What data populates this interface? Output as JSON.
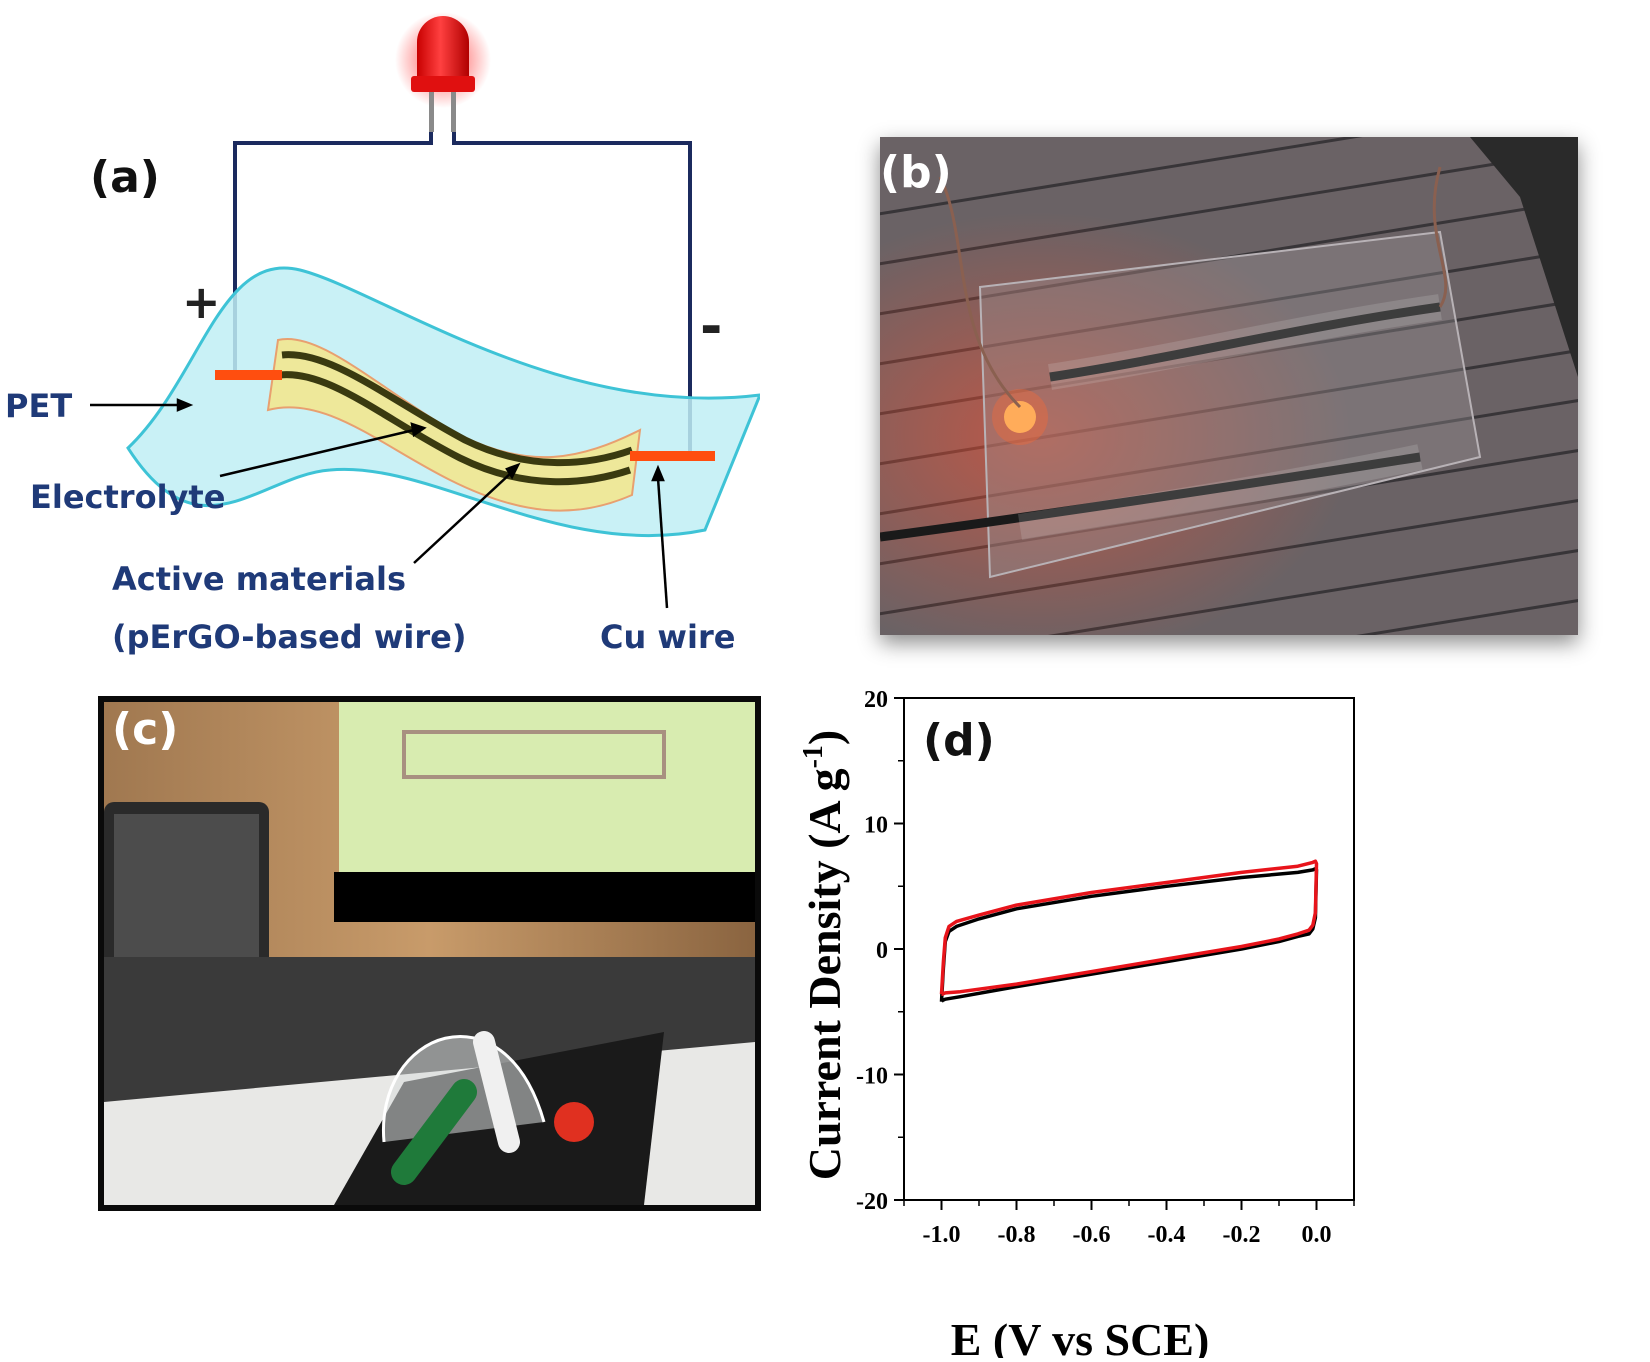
{
  "panels": {
    "a": {
      "label": "(a)",
      "plus": "+",
      "minus": "-",
      "pet": "PET",
      "electrolyte": "Electrolyte",
      "active_line1": "Active materials",
      "active_line2": "(pErGO-based wire)",
      "cu_wire": "Cu wire"
    },
    "b": {
      "label": "(b)"
    },
    "c": {
      "label": "(c)"
    },
    "d": {
      "label": "(d)"
    }
  },
  "colors": {
    "wire": "#1b2a5e",
    "label_blue": "#1f3a78",
    "pet_fill": "#bfeef5",
    "pet_edge": "#3ec3d6",
    "cu": "#ff4e0f",
    "electrolyte": "#f4e68a",
    "led": "#ff1a1a",
    "cv_black": "#000000",
    "cv_red": "#e8141b"
  },
  "chart_data": {
    "type": "line",
    "title": "",
    "xlabel": "E (V vs SCE)",
    "ylabel_main": "Current Density (A g",
    "ylabel_sup": "-1",
    "ylabel_close": ")",
    "xlim": [
      -1.1,
      0.1
    ],
    "ylim": [
      -20,
      20
    ],
    "xticks": [
      -1.0,
      -0.8,
      -0.6,
      -0.4,
      -0.2,
      0.0
    ],
    "xtick_labels": [
      "-1.0",
      "-0.8",
      "-0.6",
      "-0.4",
      "-0.2",
      "0.0"
    ],
    "yticks": [
      -20,
      -10,
      0,
      10,
      20
    ],
    "ytick_labels": [
      "-20",
      "-10",
      "0",
      "10",
      "20"
    ],
    "series": [
      {
        "name": "black",
        "color": "#000000",
        "x": [
          -1.0,
          -0.995,
          -0.99,
          -0.98,
          -0.96,
          -0.9,
          -0.8,
          -0.6,
          -0.4,
          -0.2,
          -0.05,
          -0.01,
          -0.003,
          0.0,
          -0.003,
          -0.01,
          -0.02,
          -0.05,
          -0.1,
          -0.2,
          -0.4,
          -0.6,
          -0.8,
          -0.95,
          -0.99,
          -0.998,
          -1.0
        ],
        "y": [
          -4.2,
          -1.5,
          0.6,
          1.4,
          1.8,
          2.4,
          3.2,
          4.2,
          5.0,
          5.7,
          6.1,
          6.3,
          6.4,
          6.3,
          2.5,
          1.6,
          1.2,
          1.0,
          0.6,
          0.0,
          -1.0,
          -2.0,
          -3.0,
          -3.8,
          -4.0,
          -4.1,
          -4.2
        ]
      },
      {
        "name": "red",
        "color": "#e8141b",
        "x": [
          -1.0,
          -0.995,
          -0.99,
          -0.98,
          -0.96,
          -0.9,
          -0.8,
          -0.6,
          -0.4,
          -0.2,
          -0.05,
          -0.01,
          -0.003,
          0.0,
          -0.003,
          -0.01,
          -0.02,
          -0.05,
          -0.1,
          -0.2,
          -0.4,
          -0.6,
          -0.8,
          -0.95,
          -0.99,
          -0.998,
          -1.0
        ],
        "y": [
          -3.6,
          -1.0,
          0.9,
          1.8,
          2.2,
          2.7,
          3.5,
          4.5,
          5.3,
          6.1,
          6.6,
          6.9,
          7.0,
          6.8,
          2.9,
          1.9,
          1.5,
          1.2,
          0.8,
          0.2,
          -0.8,
          -1.8,
          -2.8,
          -3.4,
          -3.5,
          -3.6,
          -3.6
        ]
      }
    ]
  }
}
